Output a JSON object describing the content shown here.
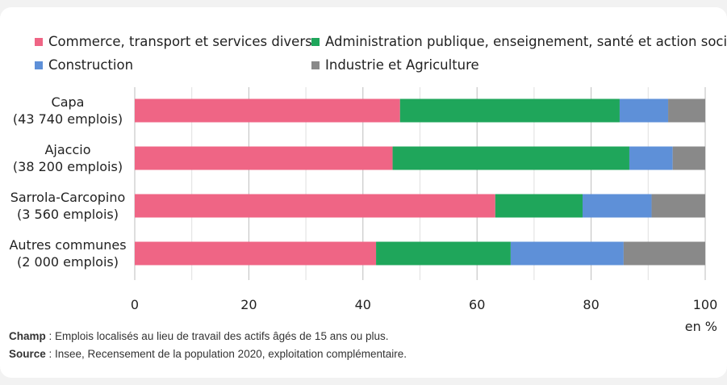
{
  "chart_data": {
    "type": "bar",
    "orientation": "horizontal",
    "stacked": true,
    "categories": [
      [
        "Capa",
        "(43 740 emplois)"
      ],
      [
        "Ajaccio",
        "(38 200 emplois)"
      ],
      [
        "Sarrola-Carcopino",
        "(3 560 emplois)"
      ],
      [
        "Autres communes",
        "(2 000 emplois)"
      ]
    ],
    "series": [
      {
        "name": "Commerce, transport et services divers",
        "color": "#ef6585",
        "values": [
          46.5,
          45.2,
          63.2,
          42.3
        ]
      },
      {
        "name": "Administration publique, enseignement, santé et action sociale",
        "color": "#1fa65b",
        "values": [
          38.5,
          41.5,
          15.3,
          23.6
        ]
      },
      {
        "name": "Construction",
        "color": "#5e90d8",
        "values": [
          8.5,
          7.6,
          12.1,
          19.8
        ]
      },
      {
        "name": "Industrie et Agriculture",
        "color": "#898989",
        "values": [
          6.5,
          5.7,
          9.4,
          14.3
        ]
      }
    ],
    "xlim": [
      0,
      100
    ],
    "xticks": [
      "0",
      "20",
      "40",
      "60",
      "80",
      "100"
    ],
    "xunit": "en %",
    "grid": true,
    "legend_position": "top"
  },
  "notes": {
    "champ_label": "Champ",
    "champ_text": " : Emplois localisés au lieu de travail des actifs âgés de 15 ans ou plus.",
    "source_label": "Source",
    "source_text": " : Insee, Recensement de la population 2020, exploitation complémentaire."
  }
}
